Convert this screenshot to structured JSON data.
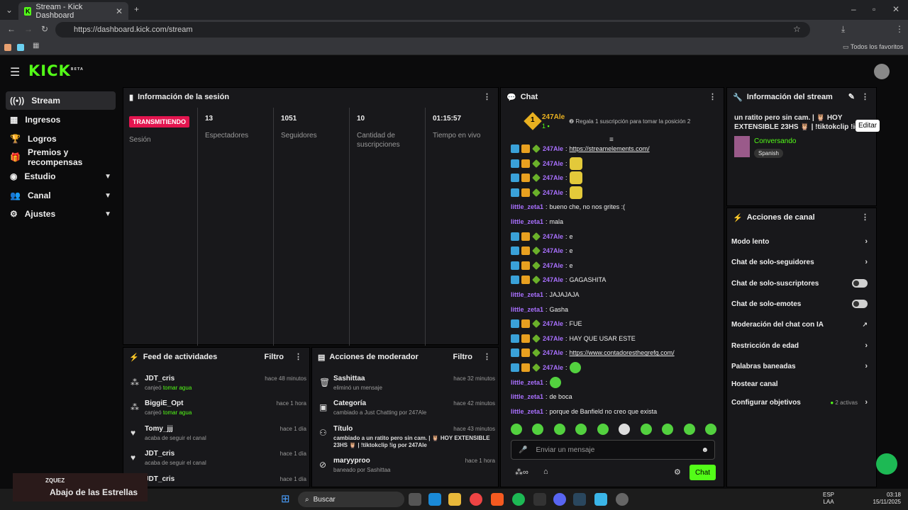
{
  "browser": {
    "tab_title": "Stream - Kick Dashboard",
    "url": "https://dashboard.kick.com/stream",
    "bookmarks_folder": "Todos los favoritos"
  },
  "app": {
    "logo": "KICK",
    "logo_badge": "BETA"
  },
  "sidebar": {
    "items": [
      {
        "label": "Stream"
      },
      {
        "label": "Ingresos"
      },
      {
        "label": "Logros"
      },
      {
        "label": "Premios y recompensas"
      },
      {
        "label": "Estudio"
      },
      {
        "label": "Canal"
      },
      {
        "label": "Ajustes"
      }
    ]
  },
  "session": {
    "title": "Información de la sesión",
    "status": "TRANSMITIENDO",
    "status_label": "Sesión",
    "stats": [
      {
        "value": "13",
        "label": "Espectadores"
      },
      {
        "value": "1051",
        "label": "Seguidores"
      },
      {
        "value": "10",
        "label": "Cantidad de suscripciones"
      },
      {
        "value": "01:15:57",
        "label": "Tiempo en vivo"
      }
    ]
  },
  "feed": {
    "title": "Feed de actividades",
    "filter": "Filtro",
    "items": [
      {
        "name": "JDT_cris",
        "desc": "canjeó",
        "highlight": "tomar agua",
        "time": "hace 48 minutos"
      },
      {
        "name": "BiggiE_Opt",
        "desc": "canjeó",
        "highlight": "tomar agua",
        "time": "hace 1 hora"
      },
      {
        "name": "Tomy_jjj",
        "desc": "acaba de seguir el canal",
        "highlight": "",
        "time": "hace 1 día"
      },
      {
        "name": "JDT_cris",
        "desc": "acaba de seguir el canal",
        "highlight": "",
        "time": "hace 1 día"
      },
      {
        "name": "JDT_cris",
        "desc": "",
        "highlight": "",
        "time": "hace 1 día"
      }
    ]
  },
  "mod": {
    "title": "Acciones de moderador",
    "filter": "Filtro",
    "items": [
      {
        "name": "Sashittaa",
        "desc": "eliminó un mensaje",
        "time": "hace 32 minutos"
      },
      {
        "name": "Categoría",
        "desc": "cambiado a Just Chatting por 247Ale",
        "time": "hace 42 minutos"
      },
      {
        "name": "Título",
        "desc": "cambiado a un ratito pero sin cam. | 🦉 HOY EXTENSIBLE 23HS 🦉 | !tiktokclip !ig por 247Ale",
        "time": "hace 43 minutos"
      },
      {
        "name": "maryyproo",
        "desc": "baneado por Sashittaa",
        "time": "hace 1 hora"
      }
    ]
  },
  "chat": {
    "title": "Chat",
    "top_user": "247Ale",
    "top_count": "1",
    "top_rank": "1",
    "promo": "Regala 1 suscripción para tomar la posición 2",
    "input_placeholder": "Enviar un mensaje",
    "send": "Chat",
    "messages": [
      {
        "user": "247Ale",
        "text": "https://streamelements.com/",
        "badges": true,
        "link": true
      },
      {
        "user": "247Ale",
        "text": "",
        "badges": true,
        "emote": "yellow"
      },
      {
        "user": "247Ale",
        "text": "",
        "badges": true,
        "emote": "yellow"
      },
      {
        "user": "247Ale",
        "text": "",
        "badges": true,
        "emote": "yellow"
      },
      {
        "user": "little_zeta1",
        "text": "bueno che, no nos grites :(",
        "badges": false
      },
      {
        "user": "little_zeta1",
        "text": "mala",
        "badges": false
      },
      {
        "user": "247Ale",
        "text": "e",
        "badges": true
      },
      {
        "user": "247Ale",
        "text": "e",
        "badges": true
      },
      {
        "user": "247Ale",
        "text": "e",
        "badges": true
      },
      {
        "user": "247Ale",
        "text": "GAGASHITA",
        "badges": true
      },
      {
        "user": "little_zeta1",
        "text": "JAJAJAJA",
        "badges": false
      },
      {
        "user": "little_zeta1",
        "text": "Gasha",
        "badges": false
      },
      {
        "user": "247Ale",
        "text": "FUE",
        "badges": true
      },
      {
        "user": "247Ale",
        "text": "HAY QUE USAR ESTE",
        "badges": true
      },
      {
        "user": "247Ale",
        "text": "https://www.contadoresthegrefg.com/",
        "badges": true,
        "link": true
      },
      {
        "user": "247Ale",
        "text": "",
        "badges": true,
        "emote": "green"
      },
      {
        "user": "little_zeta1",
        "text": "",
        "badges": false,
        "emote": "green"
      },
      {
        "user": "little_zeta1",
        "text": "de boca",
        "badges": false
      },
      {
        "user": "little_zeta1",
        "text": "porque de Banfield no creo que exista",
        "badges": false
      }
    ]
  },
  "info": {
    "title": "Información del stream",
    "stream_title": "un ratito pero sin cam. | 🦉 HOY EXTENSIBLE 23HS 🦉 | !tiktokclip !ig",
    "category": "Conversando",
    "language": "Spanish",
    "tooltip": "Editar"
  },
  "actions": {
    "title": "Acciones de canal",
    "items": [
      {
        "label": "Modo lento",
        "kind": "arrow"
      },
      {
        "label": "Chat de solo-seguidores",
        "kind": "arrow"
      },
      {
        "label": "Chat de solo-suscriptores",
        "kind": "toggle"
      },
      {
        "label": "Chat de solo-emotes",
        "kind": "toggle"
      },
      {
        "label": "Moderación del chat con IA",
        "kind": "ext"
      },
      {
        "label": "Restricción de edad",
        "kind": "arrow"
      },
      {
        "label": "Palabras baneadas",
        "kind": "arrow"
      },
      {
        "label": "Hostear canal",
        "kind": "none"
      },
      {
        "label": "Configurar objetivos",
        "kind": "arrow",
        "extra": "2 activas"
      }
    ]
  },
  "taskbar": {
    "search": "Buscar",
    "lang": "ESP",
    "lang2": "LAA",
    "time": "03:18",
    "date": "15/11/2025",
    "now_playing_artist": "ZQUEZ",
    "now_playing": "Abajo de las Estrellas"
  },
  "colors": {
    "brand": "#53fc18",
    "live": "#e3154f",
    "user": "#a970ff"
  }
}
